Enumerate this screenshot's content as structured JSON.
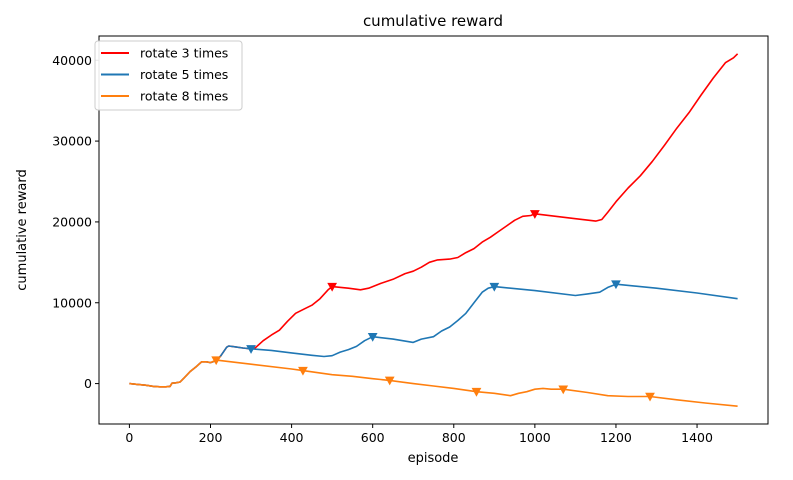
{
  "chart_data": {
    "type": "line",
    "title": "cumulative reward",
    "xlabel": "episode",
    "ylabel": "cumulative reward",
    "xlim": [
      -75,
      1575
    ],
    "ylim": [
      -5000,
      43000
    ],
    "xticks": [
      0,
      200,
      400,
      600,
      800,
      1000,
      1200,
      1400
    ],
    "yticks": [
      0,
      10000,
      20000,
      30000,
      40000
    ],
    "legend_position": "top-left",
    "grid": false,
    "series": [
      {
        "name": "rotate 3 times",
        "color": "#ff0000",
        "marker": "triangle-down",
        "markers_x": [
          500,
          1000
        ],
        "points": [
          [
            0,
            0
          ],
          [
            20,
            -100
          ],
          [
            40,
            -200
          ],
          [
            60,
            -350
          ],
          [
            75,
            -400
          ],
          [
            90,
            -400
          ],
          [
            100,
            -350
          ],
          [
            105,
            50
          ],
          [
            115,
            100
          ],
          [
            125,
            200
          ],
          [
            135,
            700
          ],
          [
            150,
            1500
          ],
          [
            165,
            2100
          ],
          [
            178,
            2700
          ],
          [
            190,
            2700
          ],
          [
            200,
            2600
          ],
          [
            212,
            2800
          ],
          [
            225,
            3400
          ],
          [
            240,
            4500
          ],
          [
            245,
            4650
          ],
          [
            260,
            4550
          ],
          [
            280,
            4400
          ],
          [
            300,
            4300
          ],
          [
            310,
            4400
          ],
          [
            330,
            5300
          ],
          [
            350,
            6000
          ],
          [
            370,
            6600
          ],
          [
            390,
            7700
          ],
          [
            410,
            8700
          ],
          [
            430,
            9200
          ],
          [
            450,
            9700
          ],
          [
            470,
            10500
          ],
          [
            490,
            11600
          ],
          [
            500,
            12000
          ],
          [
            540,
            11800
          ],
          [
            570,
            11600
          ],
          [
            590,
            11800
          ],
          [
            600,
            12000
          ],
          [
            620,
            12400
          ],
          [
            650,
            12900
          ],
          [
            680,
            13600
          ],
          [
            700,
            13900
          ],
          [
            720,
            14400
          ],
          [
            740,
            15000
          ],
          [
            760,
            15300
          ],
          [
            790,
            15400
          ],
          [
            810,
            15600
          ],
          [
            830,
            16200
          ],
          [
            850,
            16700
          ],
          [
            870,
            17500
          ],
          [
            890,
            18100
          ],
          [
            910,
            18800
          ],
          [
            930,
            19500
          ],
          [
            950,
            20200
          ],
          [
            970,
            20700
          ],
          [
            990,
            20800
          ],
          [
            1000,
            21000
          ],
          [
            1100,
            20400
          ],
          [
            1150,
            20100
          ],
          [
            1165,
            20300
          ],
          [
            1180,
            21200
          ],
          [
            1200,
            22500
          ],
          [
            1230,
            24200
          ],
          [
            1260,
            25700
          ],
          [
            1290,
            27500
          ],
          [
            1320,
            29500
          ],
          [
            1350,
            31600
          ],
          [
            1380,
            33500
          ],
          [
            1410,
            35700
          ],
          [
            1440,
            37800
          ],
          [
            1470,
            39700
          ],
          [
            1490,
            40300
          ],
          [
            1500,
            40800
          ]
        ]
      },
      {
        "name": "rotate 5 times",
        "color": "#1f77b4",
        "marker": "triangle-down",
        "markers_x": [
          300,
          600,
          900,
          1200
        ],
        "points": [
          [
            0,
            0
          ],
          [
            20,
            -100
          ],
          [
            40,
            -200
          ],
          [
            60,
            -350
          ],
          [
            75,
            -400
          ],
          [
            90,
            -400
          ],
          [
            100,
            -350
          ],
          [
            105,
            50
          ],
          [
            115,
            100
          ],
          [
            125,
            200
          ],
          [
            135,
            700
          ],
          [
            150,
            1500
          ],
          [
            165,
            2100
          ],
          [
            178,
            2700
          ],
          [
            190,
            2700
          ],
          [
            200,
            2600
          ],
          [
            212,
            2800
          ],
          [
            225,
            3400
          ],
          [
            240,
            4500
          ],
          [
            245,
            4650
          ],
          [
            260,
            4550
          ],
          [
            280,
            4400
          ],
          [
            300,
            4300
          ],
          [
            350,
            4100
          ],
          [
            400,
            3800
          ],
          [
            450,
            3500
          ],
          [
            480,
            3350
          ],
          [
            500,
            3450
          ],
          [
            520,
            3900
          ],
          [
            540,
            4200
          ],
          [
            560,
            4600
          ],
          [
            580,
            5300
          ],
          [
            600,
            5800
          ],
          [
            650,
            5500
          ],
          [
            700,
            5100
          ],
          [
            720,
            5500
          ],
          [
            750,
            5800
          ],
          [
            770,
            6500
          ],
          [
            790,
            7000
          ],
          [
            810,
            7800
          ],
          [
            830,
            8700
          ],
          [
            850,
            10000
          ],
          [
            870,
            11300
          ],
          [
            885,
            11800
          ],
          [
            900,
            12000
          ],
          [
            1000,
            11500
          ],
          [
            1100,
            10900
          ],
          [
            1130,
            11100
          ],
          [
            1160,
            11300
          ],
          [
            1180,
            11900
          ],
          [
            1200,
            12300
          ],
          [
            1300,
            11800
          ],
          [
            1400,
            11200
          ],
          [
            1500,
            10500
          ]
        ]
      },
      {
        "name": "rotate 8 times",
        "color": "#ff7f0e",
        "marker": "triangle-down",
        "markers_x": [
          214,
          428,
          642,
          856,
          1070,
          1284
        ],
        "points": [
          [
            0,
            0
          ],
          [
            20,
            -100
          ],
          [
            40,
            -200
          ],
          [
            60,
            -350
          ],
          [
            75,
            -400
          ],
          [
            90,
            -400
          ],
          [
            100,
            -350
          ],
          [
            105,
            50
          ],
          [
            115,
            100
          ],
          [
            125,
            200
          ],
          [
            135,
            700
          ],
          [
            150,
            1500
          ],
          [
            165,
            2100
          ],
          [
            178,
            2700
          ],
          [
            190,
            2700
          ],
          [
            200,
            2600
          ],
          [
            214,
            2900
          ],
          [
            300,
            2400
          ],
          [
            400,
            1800
          ],
          [
            428,
            1600
          ],
          [
            500,
            1100
          ],
          [
            550,
            900
          ],
          [
            600,
            600
          ],
          [
            642,
            400
          ],
          [
            700,
            0
          ],
          [
            750,
            -300
          ],
          [
            800,
            -600
          ],
          [
            856,
            -1000
          ],
          [
            900,
            -1200
          ],
          [
            940,
            -1500
          ],
          [
            960,
            -1200
          ],
          [
            980,
            -1000
          ],
          [
            1000,
            -700
          ],
          [
            1020,
            -600
          ],
          [
            1040,
            -700
          ],
          [
            1070,
            -700
          ],
          [
            1130,
            -1100
          ],
          [
            1180,
            -1500
          ],
          [
            1230,
            -1600
          ],
          [
            1284,
            -1600
          ],
          [
            1350,
            -2000
          ],
          [
            1420,
            -2400
          ],
          [
            1500,
            -2800
          ]
        ]
      }
    ]
  }
}
